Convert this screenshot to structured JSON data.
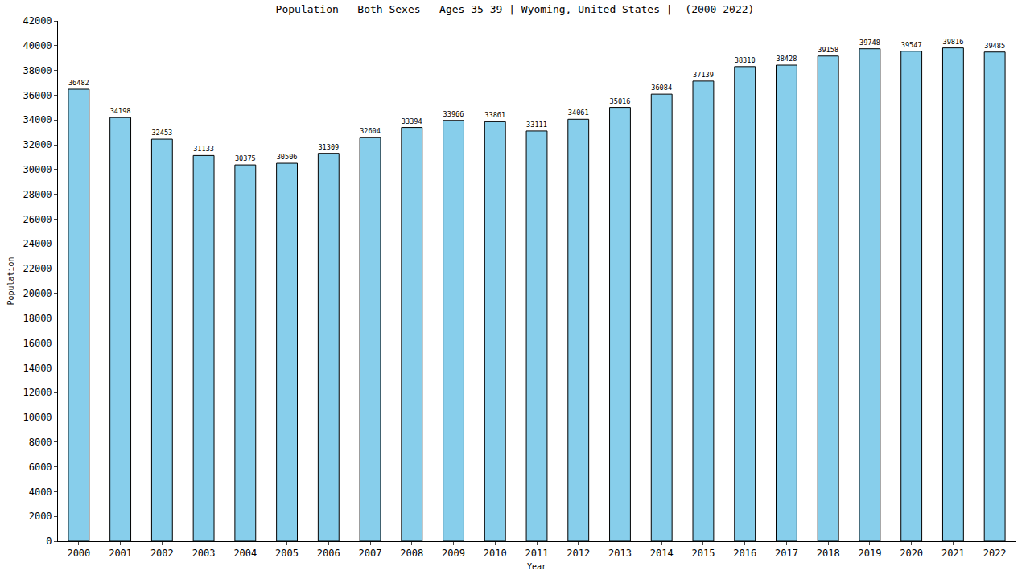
{
  "chart_data": {
    "type": "bar",
    "title": "Population - Both Sexes - Ages 35-39 | Wyoming, United States |  (2000-2022)",
    "x_label": "Year",
    "y_label": "Population",
    "categories": [
      "2000",
      "2001",
      "2002",
      "2003",
      "2004",
      "2005",
      "2006",
      "2007",
      "2008",
      "2009",
      "2010",
      "2011",
      "2012",
      "2013",
      "2014",
      "2015",
      "2016",
      "2017",
      "2018",
      "2019",
      "2020",
      "2021",
      "2022"
    ],
    "values": [
      36482,
      34198,
      32453,
      31133,
      30375,
      30506,
      31309,
      32604,
      33394,
      33966,
      33861,
      33111,
      34061,
      35016,
      36084,
      37139,
      38310,
      38428,
      39158,
      39748,
      39547,
      39816,
      39485
    ],
    "color": "#87ceeb",
    "ylim": [
      0,
      42000
    ],
    "yticks": [
      0,
      2000,
      4000,
      6000,
      8000,
      10000,
      12000,
      14000,
      16000,
      18000,
      20000,
      22000,
      24000,
      26000,
      28000,
      30000,
      32000,
      34000,
      36000,
      38000,
      40000,
      42000
    ],
    "grid": false,
    "data_labels": true
  }
}
